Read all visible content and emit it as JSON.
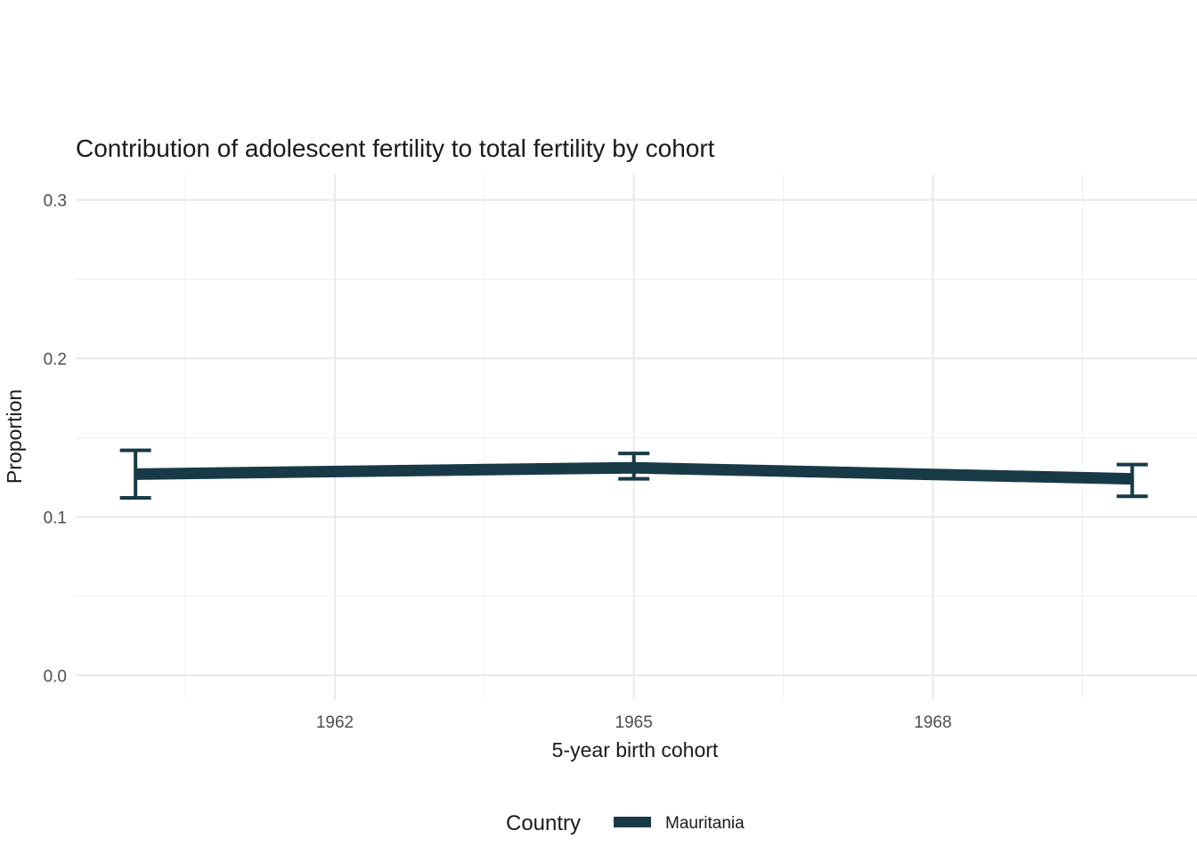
{
  "chart_data": {
    "type": "line",
    "title": "Contribution of adolescent fertility to total fertility by cohort",
    "xlabel": "5-year birth cohort",
    "ylabel": "Proportion",
    "legend_title": "Country",
    "legend_position": "bottom",
    "grid": true,
    "xlim": [
      1959.4,
      1970.65
    ],
    "ylim": [
      -0.015,
      0.316
    ],
    "x_ticks": [
      1962,
      1965,
      1968
    ],
    "x_tick_labels": [
      "1962",
      "1965",
      "1968"
    ],
    "x_minor_ticks": [
      1960.5,
      1963.5,
      1966.5,
      1969.5
    ],
    "y_ticks": [
      0.0,
      0.1,
      0.2,
      0.3
    ],
    "y_tick_labels": [
      "0.0",
      "0.1",
      "0.2",
      "0.3"
    ],
    "y_minor_ticks": [
      0.05,
      0.15,
      0.25
    ],
    "series": [
      {
        "name": "Mauritania",
        "color": "#183a47",
        "x": [
          1960,
          1965,
          1970
        ],
        "y": [
          0.127,
          0.131,
          0.124
        ],
        "ymin": [
          0.112,
          0.124,
          0.113
        ],
        "ymax": [
          0.142,
          0.14,
          0.133
        ]
      }
    ]
  }
}
